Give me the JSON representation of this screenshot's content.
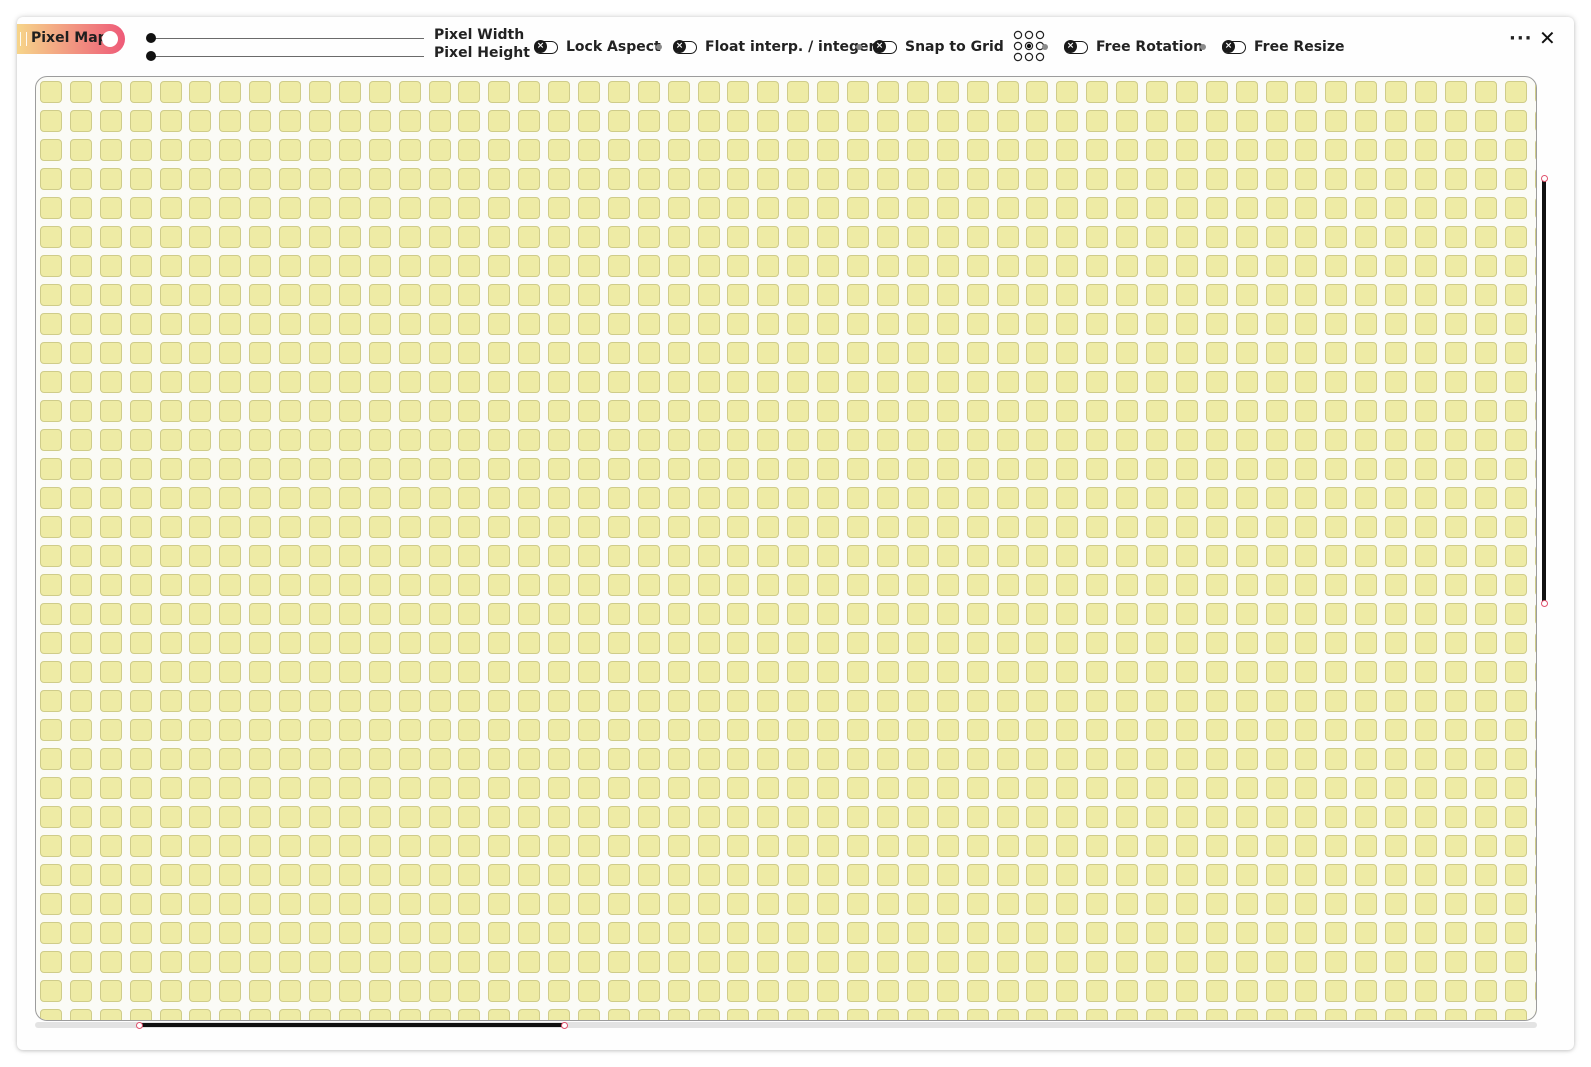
{
  "app": {
    "title": "Pixel Map",
    "gradient_from": "#f6d58a",
    "gradient_to": "#ee5a78",
    "toggle_on": true
  },
  "sliders": [
    {
      "label": "Pixel Width",
      "value": 0
    },
    {
      "label": "Pixel Height",
      "value": 0
    }
  ],
  "toggles": [
    {
      "label": "Lock Aspect",
      "state": "off"
    },
    {
      "label": "Float interp. / integer",
      "state": "off"
    },
    {
      "label": "Snap to Grid",
      "state": "off"
    },
    {
      "label": "Free Rotation",
      "state": "off"
    },
    {
      "label": "Free Resize",
      "state": "off"
    }
  ],
  "icons": {
    "grid_anchor": "grid-anchor-icon",
    "more": "more-icon",
    "close": "close-icon"
  },
  "grid": {
    "columns": 51,
    "rows": 33,
    "cell_color": "#eeeba5",
    "cell_border_color": "#cfcc8a"
  },
  "scroll": {
    "horizontal_start": 0.07,
    "horizontal_end": 0.35,
    "vertical_start": 0.11,
    "vertical_end": 0.56,
    "accent": "#e0536e"
  }
}
